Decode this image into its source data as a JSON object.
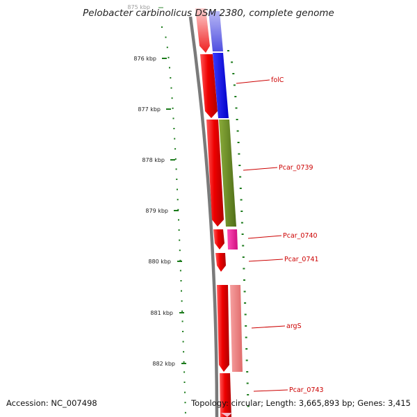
{
  "title": "Pelobacter carbinolicus DSM 2380, complete genome",
  "kbp_labels": [
    "875 kbp",
    "876 kbp",
    "877 kbp",
    "878 kbp",
    "879 kbp",
    "880 kbp",
    "881 kbp",
    "882 kbp"
  ],
  "genes": [
    {
      "name": "folC",
      "color": "#cc0000"
    },
    {
      "name": "Pcar_0739",
      "color": "#cc0000"
    },
    {
      "name": "Pcar_0740",
      "color": "#cc0000"
    },
    {
      "name": "Pcar_0741",
      "color": "#cc0000"
    },
    {
      "name": "argS",
      "color": "#cc0000"
    },
    {
      "name": "Pcar_0743",
      "color": "#cc0000"
    }
  ],
  "colors": {
    "backbone": "#7a7a7a",
    "tick": "#1a7a1a",
    "cds_strand": "#ee0000",
    "blue_domain": "#0000ee",
    "green_domain": "#6b8e23",
    "magenta_domain": "#e8229a",
    "pink_domain": "#f08080"
  },
  "footer": {
    "accession": "Accession: NC_007498",
    "topology": "Topology: circular; Length: 3,665,893 bp; Genes: 3,415"
  }
}
